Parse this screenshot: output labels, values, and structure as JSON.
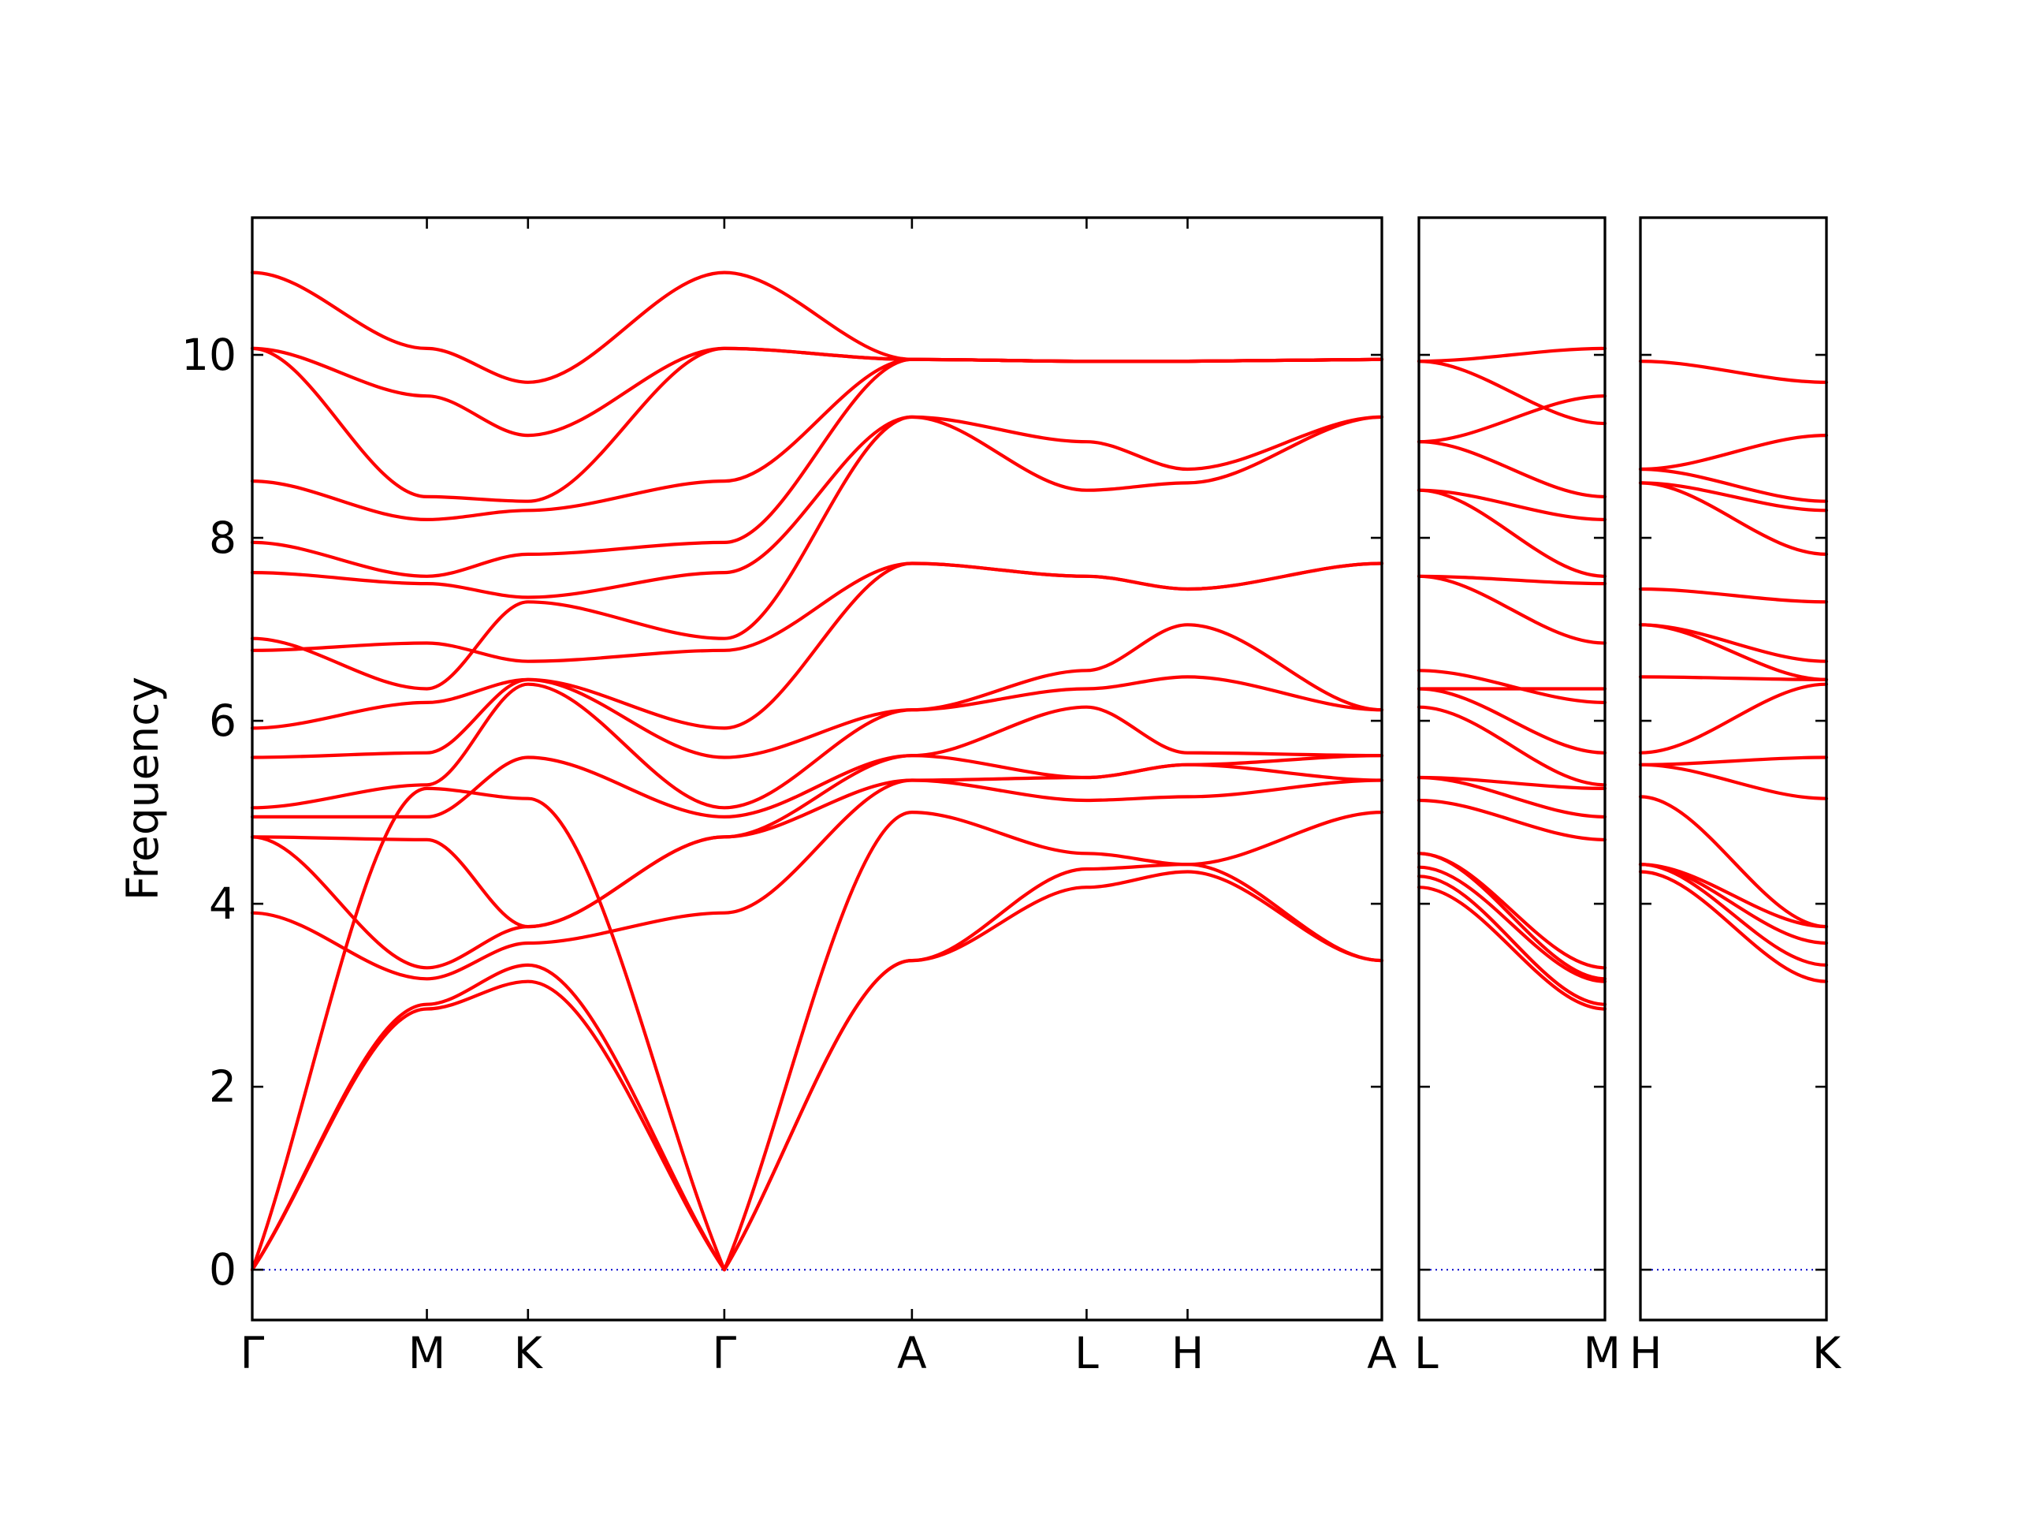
{
  "chart_data": {
    "type": "line",
    "ylabel": "Frequency",
    "ylim": [
      -0.55,
      11.5
    ],
    "yticks": [
      0,
      2,
      4,
      6,
      8,
      10
    ],
    "grid": false,
    "band_color": "#ff0000",
    "zero_line_color": "#0000cc",
    "panels": [
      {
        "name": "panel-main",
        "xticks": [
          "Γ",
          "M",
          "K",
          "Γ",
          "A",
          "L",
          "H",
          "A"
        ],
        "x": [
          0.0,
          0.1546,
          0.2441,
          0.4179,
          0.584,
          0.7386,
          0.828,
          1.0
        ],
        "bands": [
          [
            0,
            2.85,
            3.15,
            0,
            3.38,
            4.18,
            4.35,
            3.38
          ],
          [
            0,
            2.9,
            3.33,
            0,
            3.38,
            4.38,
            4.43,
            3.38
          ],
          [
            0,
            5.26,
            5.15,
            0,
            5.0,
            4.55,
            4.43,
            5.0
          ],
          [
            3.9,
            3.18,
            3.57,
            3.9,
            5.35,
            5.13,
            5.17,
            5.35
          ],
          [
            4.73,
            3.3,
            3.75,
            4.73,
            5.35,
            5.38,
            5.52,
            5.35
          ],
          [
            4.73,
            4.7,
            3.75,
            4.73,
            5.62,
            5.38,
            5.52,
            5.62
          ],
          [
            4.95,
            4.95,
            5.6,
            4.95,
            5.62,
            6.15,
            5.65,
            5.62
          ],
          [
            5.05,
            5.3,
            6.4,
            5.05,
            6.12,
            6.35,
            6.48,
            6.12
          ],
          [
            5.6,
            5.65,
            6.45,
            5.6,
            6.12,
            6.55,
            7.05,
            6.12
          ],
          [
            5.92,
            6.2,
            6.45,
            5.92,
            7.72,
            7.58,
            7.44,
            7.72
          ],
          [
            6.77,
            6.85,
            6.65,
            6.77,
            7.72,
            7.58,
            7.44,
            7.72
          ],
          [
            6.9,
            6.35,
            7.3,
            6.9,
            9.32,
            8.52,
            8.6,
            9.32
          ],
          [
            7.62,
            7.5,
            7.35,
            7.62,
            9.32,
            9.05,
            8.75,
            9.32
          ],
          [
            7.95,
            7.58,
            7.82,
            7.95,
            9.95,
            9.93,
            9.93,
            9.95
          ],
          [
            8.62,
            8.2,
            8.3,
            8.62,
            9.95,
            9.93,
            9.93,
            9.95
          ],
          [
            10.07,
            8.45,
            8.4,
            10.07,
            9.95,
            9.93,
            9.93,
            9.95
          ],
          [
            10.07,
            9.55,
            9.12,
            10.07,
            9.95,
            9.93,
            9.93,
            9.95
          ],
          [
            10.9,
            10.07,
            9.7,
            10.9,
            9.95,
            9.93,
            9.93,
            9.95
          ]
        ]
      },
      {
        "name": "panel-lm",
        "xticks": [
          "L",
          "M"
        ],
        "x": [
          0.0,
          1.0
        ],
        "bands": [
          [
            4.18,
            2.85
          ],
          [
            4.3,
            2.9
          ],
          [
            4.4,
            3.15
          ],
          [
            4.55,
            3.18
          ],
          [
            4.55,
            3.3
          ],
          [
            5.13,
            4.7
          ],
          [
            5.38,
            4.95
          ],
          [
            5.38,
            5.26
          ],
          [
            6.15,
            5.3
          ],
          [
            6.35,
            5.65
          ],
          [
            6.55,
            6.2
          ],
          [
            6.35,
            6.35
          ],
          [
            7.58,
            6.85
          ],
          [
            7.58,
            7.5
          ],
          [
            8.52,
            7.58
          ],
          [
            8.52,
            8.2
          ],
          [
            9.05,
            8.45
          ],
          [
            9.05,
            9.55
          ],
          [
            9.93,
            10.07
          ],
          [
            9.93,
            9.25
          ]
        ]
      },
      {
        "name": "panel-hk",
        "xticks": [
          "H",
          "K"
        ],
        "x": [
          0.0,
          1.0
        ],
        "bands": [
          [
            4.35,
            3.15
          ],
          [
            4.43,
            3.33
          ],
          [
            4.43,
            3.57
          ],
          [
            4.43,
            3.75
          ],
          [
            5.17,
            3.75
          ],
          [
            5.52,
            5.15
          ],
          [
            5.52,
            5.6
          ],
          [
            5.65,
            6.4
          ],
          [
            6.48,
            6.45
          ],
          [
            7.05,
            6.45
          ],
          [
            7.05,
            6.65
          ],
          [
            7.44,
            7.3
          ],
          [
            8.6,
            7.82
          ],
          [
            8.6,
            8.3
          ],
          [
            8.75,
            8.4
          ],
          [
            8.75,
            9.12
          ],
          [
            9.93,
            9.7
          ]
        ]
      }
    ]
  }
}
